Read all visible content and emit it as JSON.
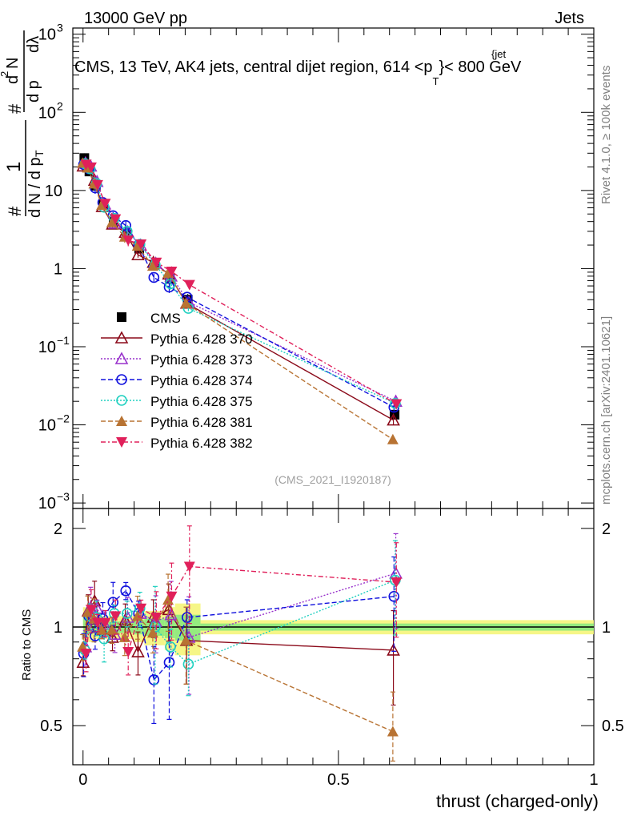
{
  "header": {
    "left": "13000 GeV pp",
    "right": "Jets"
  },
  "side_labels": {
    "rivet": "Rivet 4.1.0, ≥ 100k events",
    "mcplots": "mcplots.cern.ch [arXiv:2401.10621]"
  },
  "watermark": "(CMS_2021_I1920187)",
  "main_title": {
    "prefix": "CMS, 13 TeV, AK4 jets, central dijet region, 614 <p",
    "sup": "{jet",
    "sub": "T",
    "suffix": "}< 800 GeV"
  },
  "ylabel_upper": {
    "num_hash": "#",
    "num_one": "1",
    "den_dN": "d N / d p",
    "den_T": "T",
    "mid_hash": "#",
    "num_d2N": "d",
    "num_2": "2",
    "num_N": "N",
    "den_dp": "d p",
    "den_dlambda": "dλ"
  },
  "ylabel_lower": "Ratio to CMS",
  "xlabel": "thrust (charged-only)",
  "upper_ticks": {
    "y": [
      {
        "base": "10",
        "exp": "3",
        "value": 1000
      },
      {
        "base": "10",
        "exp": "2",
        "value": 100
      },
      {
        "base": "10",
        "exp": "",
        "value": 10
      },
      {
        "base": "1",
        "exp": "",
        "value": 1
      },
      {
        "base": "10",
        "exp": "−1",
        "value": 0.1
      },
      {
        "base": "10",
        "exp": "−2",
        "value": 0.01
      },
      {
        "base": "10",
        "exp": "−3",
        "value": 0.001
      }
    ]
  },
  "lower_ticks": {
    "y": [
      "2",
      "1",
      "0.5"
    ],
    "y_values": [
      2,
      1,
      0.5
    ]
  },
  "x_ticks": {
    "labels": [
      "0",
      "0.5",
      "1"
    ],
    "values": [
      0,
      0.5,
      1
    ]
  },
  "legend": [
    {
      "label": "CMS",
      "color": "#000000",
      "marker": "square-filled",
      "dash": ""
    },
    {
      "label": "Pythia 6.428 370",
      "color": "#8b0a1a",
      "marker": "triangle-open",
      "dash": ""
    },
    {
      "label": "Pythia 6.428 373",
      "color": "#9932cc",
      "marker": "triangle-open",
      "dash": "2,2"
    },
    {
      "label": "Pythia 6.428 374",
      "color": "#1010dd",
      "marker": "circle-open",
      "dash": "6,3"
    },
    {
      "label": "Pythia 6.428 375",
      "color": "#20d0c0",
      "marker": "circle-open",
      "dash": "2,2"
    },
    {
      "label": "Pythia 6.428 381",
      "color": "#b87333",
      "marker": "triangle-filled",
      "dash": "6,3"
    },
    {
      "label": "Pythia 6.428 382",
      "color": "#e0205a",
      "marker": "triangle-down-filled",
      "dash": "6,3,2,3"
    }
  ],
  "chart_data": {
    "type": "line",
    "title": "CMS, 13 TeV, AK4 jets, central dijet region, 614 < pT(jet) < 800 GeV",
    "xlabel": "thrust (charged-only)",
    "ylabel": "1/N dN/dlambda",
    "xlim": [
      -0.02,
      1.0
    ],
    "ylim_upper": [
      0.00085,
      1200
    ],
    "yscale_upper": "log",
    "ylim_lower": [
      0.38,
      2.3
    ],
    "yscale_lower": "log",
    "x": [
      0.0025,
      0.0125,
      0.025,
      0.04,
      0.06,
      0.085,
      0.11,
      0.14,
      0.17,
      0.205,
      0.61
    ],
    "series": [
      {
        "name": "CMS",
        "values": [
          26,
          17.5,
          11.5,
          6.6,
          4.0,
          2.75,
          1.8,
          1.12,
          0.74,
          0.4,
          0.0135
        ],
        "err_rel": [
          0.15,
          0.1,
          0.08,
          0.08,
          0.08,
          0.08,
          0.1,
          0.12,
          0.15,
          0.18,
          0.05
        ]
      },
      {
        "name": "Pythia 6.428 370",
        "values": [
          20.5,
          20.5,
          13.5,
          6.2,
          3.7,
          2.9,
          1.5,
          1.2,
          0.85,
          0.36,
          0.0115
        ],
        "ratio": [
          0.78,
          1.12,
          1.2,
          0.98,
          0.93,
          1.05,
          0.84,
          1.07,
          1.13,
          0.91,
          0.85
        ]
      },
      {
        "name": "Pythia 6.428 373",
        "values": [
          22.5,
          20.5,
          13.0,
          6.7,
          3.8,
          2.95,
          2.0,
          1.17,
          0.8,
          0.37,
          0.02
        ],
        "ratio": [
          0.87,
          1.15,
          1.14,
          1.02,
          0.95,
          1.07,
          1.1,
          1.04,
          1.09,
          0.93,
          1.46
        ]
      },
      {
        "name": "Pythia 6.428 374",
        "values": [
          21.5,
          19.0,
          10.8,
          7.0,
          4.75,
          3.55,
          2.0,
          0.77,
          0.58,
          0.43,
          0.0168
        ],
        "ratio": [
          0.83,
          1.08,
          0.94,
          1.06,
          1.19,
          1.29,
          1.1,
          0.69,
          0.78,
          1.07,
          1.24
        ]
      },
      {
        "name": "Pythia 6.428 375",
        "values": [
          22.0,
          19.0,
          12.3,
          6.1,
          4.4,
          3.0,
          2.05,
          1.12,
          0.64,
          0.31,
          0.0188
        ],
        "ratio": [
          0.85,
          1.08,
          1.07,
          0.92,
          1.1,
          1.1,
          1.14,
          1.0,
          0.87,
          0.77,
          1.39
        ]
      },
      {
        "name": "Pythia 6.428 381",
        "values": [
          22.5,
          19.5,
          12.2,
          6.5,
          3.9,
          2.55,
          1.95,
          1.08,
          0.88,
          0.36,
          0.0065
        ],
        "ratio": [
          0.87,
          1.11,
          1.06,
          0.98,
          0.98,
          0.93,
          1.08,
          0.96,
          1.21,
          0.91,
          0.48
        ]
      },
      {
        "name": "Pythia 6.428 382",
        "values": [
          21.5,
          19.8,
          11.8,
          6.8,
          4.3,
          2.3,
          2.05,
          1.2,
          0.92,
          0.62,
          0.0185
        ],
        "ratio": [
          0.83,
          1.13,
          1.03,
          1.03,
          1.08,
          0.84,
          1.14,
          1.07,
          1.24,
          1.53,
          1.37
        ]
      }
    ]
  }
}
